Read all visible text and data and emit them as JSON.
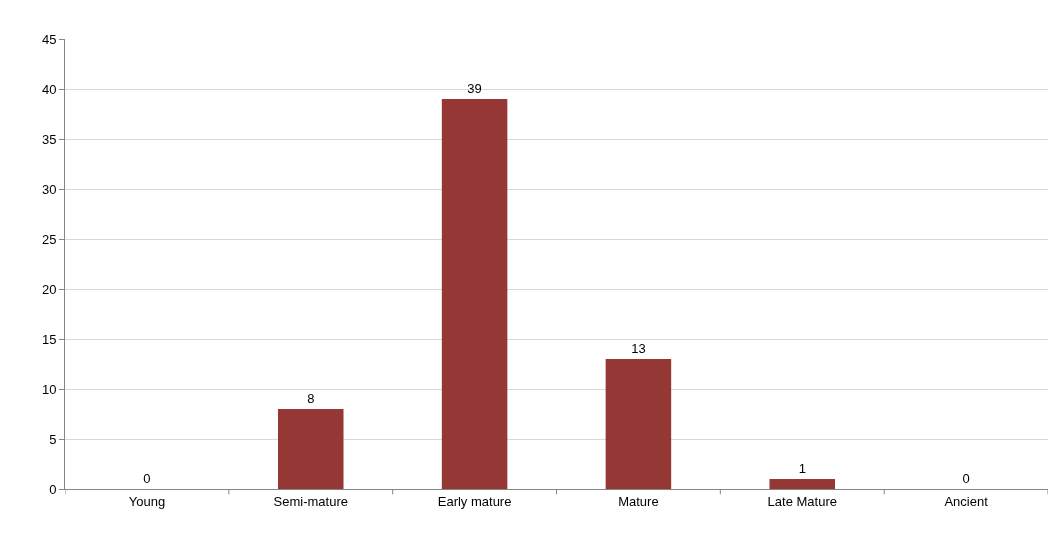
{
  "chart_data": {
    "type": "bar",
    "categories": [
      "Young",
      "Semi-mature",
      "Early mature",
      "Mature",
      "Late Mature",
      "Ancient"
    ],
    "values": [
      0,
      8,
      39,
      13,
      1,
      0
    ],
    "color": "#953735",
    "ylim": [
      0,
      45
    ],
    "yticks": [
      0,
      5,
      10,
      15,
      20,
      25,
      30,
      35,
      40,
      45
    ],
    "grid": "y",
    "data_labels": true
  }
}
